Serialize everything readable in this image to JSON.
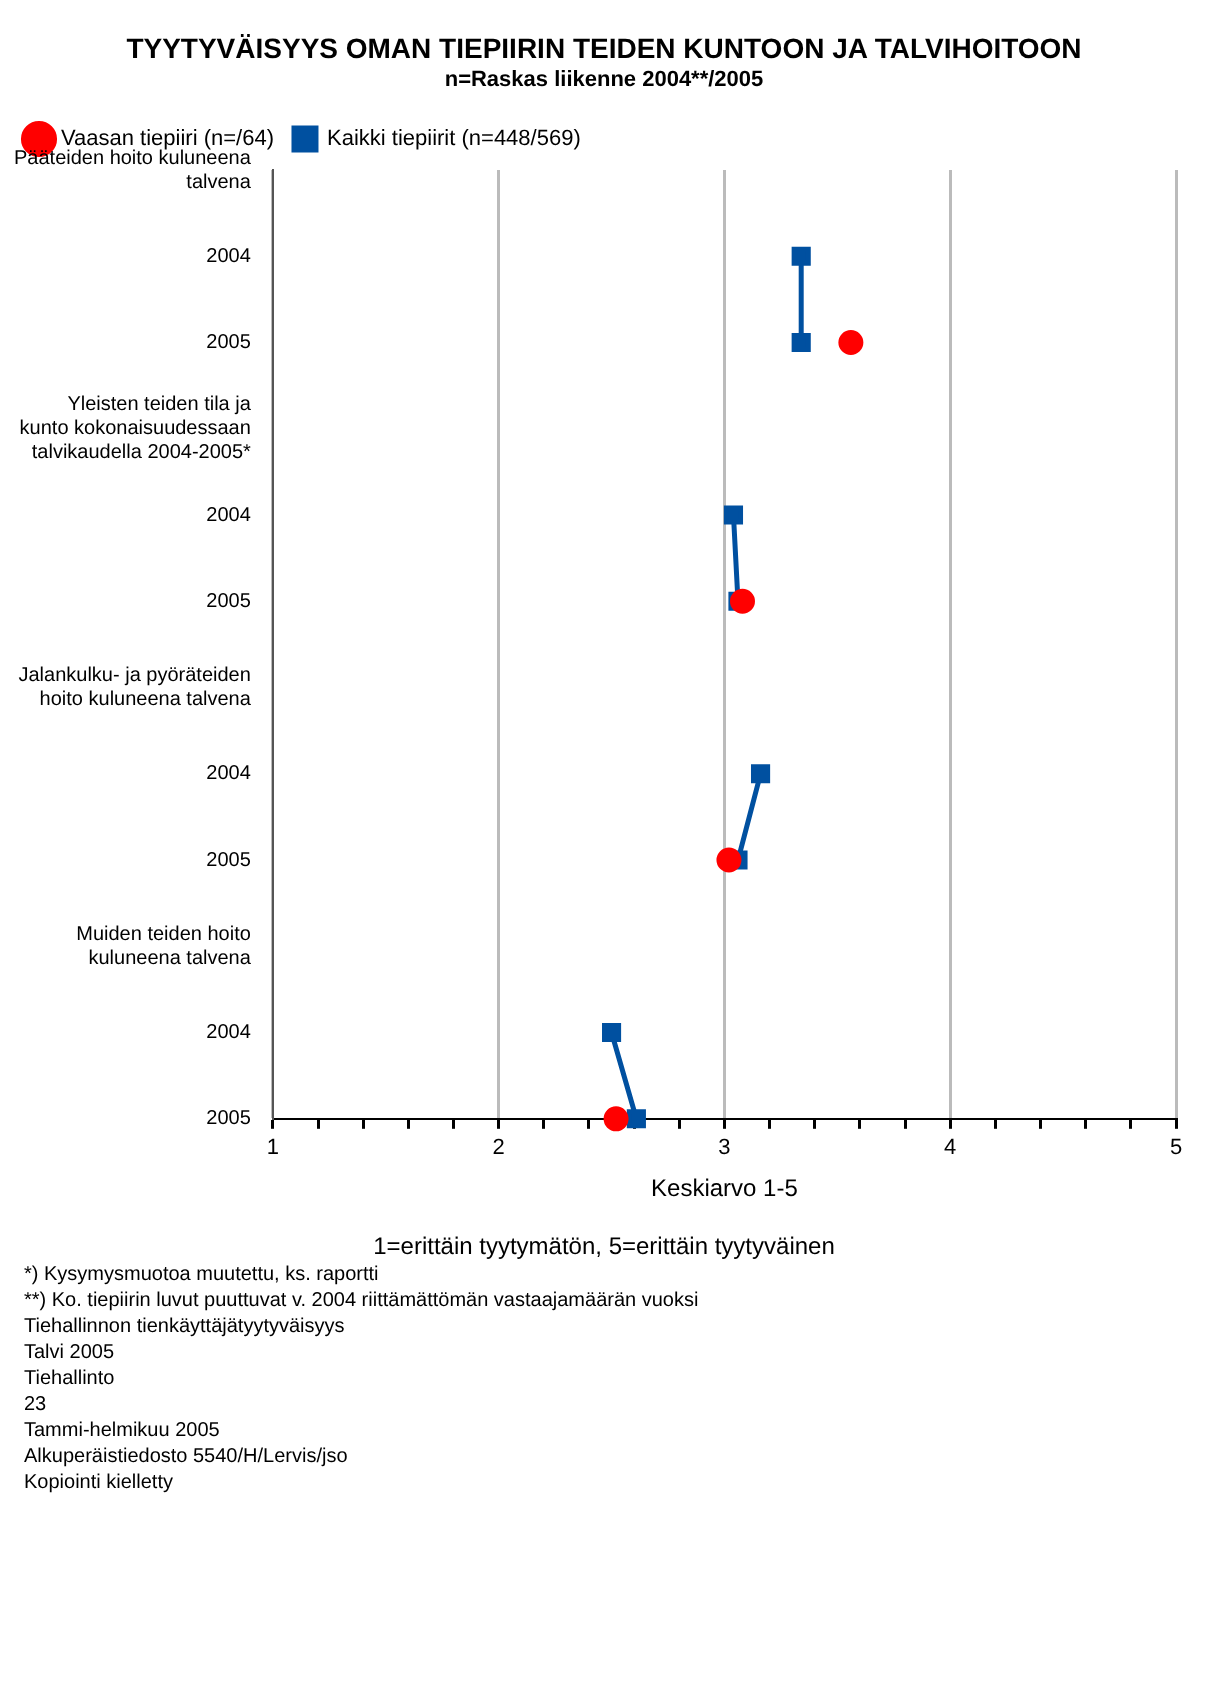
{
  "chart_data": {
    "type": "line",
    "orientation": "horizontal",
    "title": "TYYTYVÄISYYS OMAN TIEPIIRIN TEIDEN KUNTOON JA TALVIHOITOON",
    "subtitle": "n=Raskas liikenne 2004**/2005",
    "xlabel": "Keskiarvo 1-5",
    "categories": [
      "Pääteiden hoito kuluneena talvena",
      "2004",
      "2005",
      "Yleisten teiden tila ja kunto kokonaisuudessaan talvikaudella 2004-2005*",
      "2004",
      "2005",
      "Jalankulku- ja pyöräteiden hoito kuluneena talvena",
      "2004",
      "2005",
      "Muiden teiden hoito kuluneena talvena",
      "2004",
      "2005"
    ],
    "series": [
      {
        "name": "Kaikki tiepiirit (n=448/569)",
        "color": "#0050a0",
        "marker": "square",
        "values": [
          null,
          3.34,
          3.34,
          null,
          3.04,
          3.06,
          null,
          3.16,
          3.06,
          null,
          2.5,
          2.61
        ]
      },
      {
        "name": "Vaasan tiepiiri (n=/64)",
        "type": "scatter",
        "color": "#ff0000",
        "marker": "circle",
        "values": [
          null,
          null,
          3.56,
          null,
          null,
          3.08,
          null,
          null,
          3.02,
          null,
          null,
          2.52
        ]
      }
    ],
    "xlim": [
      1,
      5
    ],
    "xticks": [
      1,
      {
        "value": 1.2,
        "label": null
      },
      {
        "value": 1.4,
        "label": null
      },
      {
        "value": 1.6,
        "label": null
      },
      {
        "value": 1.8,
        "label": null
      },
      2,
      {
        "value": 2.2,
        "label": null
      },
      {
        "value": 2.4,
        "label": null
      },
      {
        "value": 2.6,
        "label": null
      },
      {
        "value": 2.8,
        "label": null
      },
      3,
      {
        "value": 3.2,
        "label": null
      },
      {
        "value": 3.4,
        "label": null
      },
      {
        "value": 3.6,
        "label": null
      },
      {
        "value": 3.8,
        "label": null
      },
      4,
      {
        "value": 4.2,
        "label": null
      },
      {
        "value": 4.4,
        "label": null
      },
      {
        "value": 4.6,
        "label": null
      },
      {
        "value": 4.8,
        "label": null
      },
      5
    ],
    "grid": "x",
    "legend": "top left",
    "annotations": [
      "1=erittäin tyytymätön, 5=erittäin tyytyväinen",
      "*) Kysymysmuotoa muutettu, ks. raportti",
      "**) Ko. tiepiirin luvut puuttuvat v. 2004 riittämättömän vastaajamäärän vuoksi",
      "Tiehallinnon tienkäyttäjätyytyväisyys",
      "Talvi 2005",
      "Tiehallinto",
      "23",
      "Tammi-helmikuu 2005",
      "Alkuperäistiedosto 5540/H/Lervis/jso",
      "Kopiointi kielletty"
    ]
  }
}
